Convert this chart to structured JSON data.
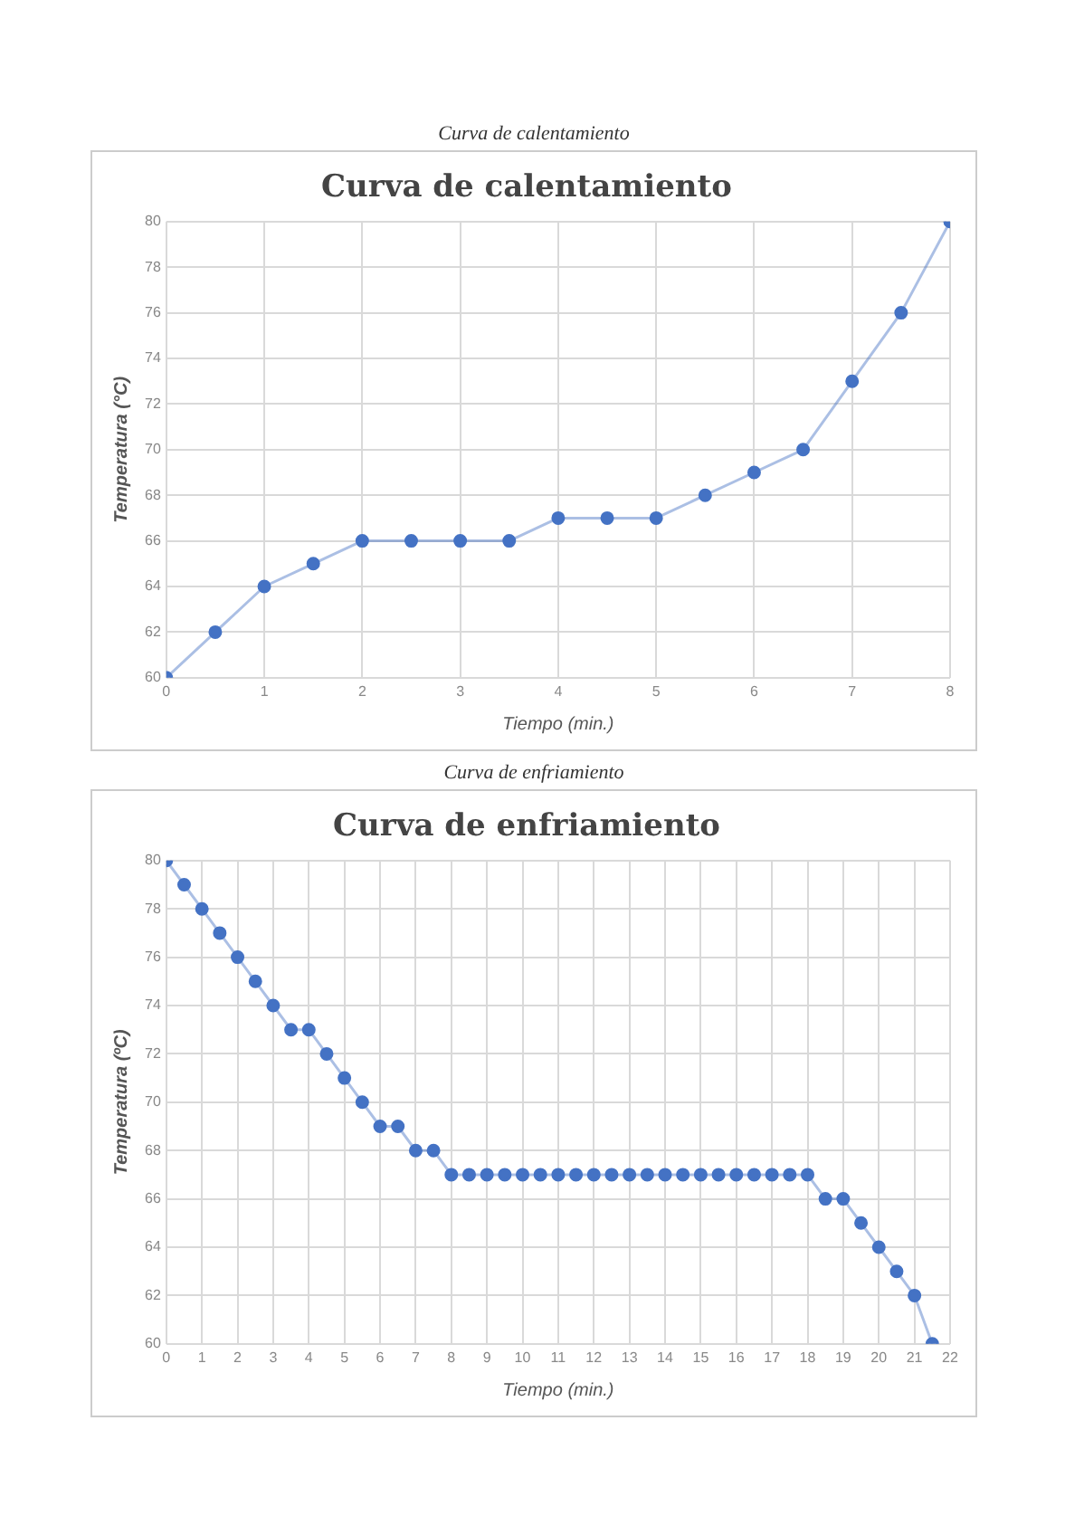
{
  "chart_data": [
    {
      "type": "line",
      "title": "Curva de calentamiento",
      "xlabel": "Tiempo (min.)",
      "ylabel": "Temperatura (°C)",
      "annotations": [
        "Curva de calentamiento"
      ],
      "x": [
        0,
        0.5,
        1,
        1.5,
        2,
        2.5,
        3,
        3.5,
        4,
        4.5,
        5,
        5.5,
        6,
        6.5,
        7,
        7.5,
        8
      ],
      "series": [
        {
          "color": "#4472c4",
          "values": [
            60,
            62,
            64,
            65,
            66,
            66,
            66,
            66,
            67,
            67,
            67,
            68,
            69,
            70,
            73,
            76,
            80
          ]
        }
      ],
      "xlim": [
        0,
        8
      ],
      "xticks": [
        0,
        1,
        2,
        3,
        4,
        5,
        6,
        7,
        8
      ],
      "ylim": [
        60,
        80
      ],
      "yticks": [
        60,
        62,
        64,
        66,
        68,
        70,
        72,
        74,
        76,
        78,
        80
      ],
      "grid": true,
      "legend": false,
      "marker": "circle",
      "line_style": "solid"
    },
    {
      "type": "line",
      "title": "Curva de enfriamiento",
      "xlabel": "Tiempo (min.)",
      "ylabel": "Temperatura (ºC)",
      "annotations": [
        "Curva de enfriamiento"
      ],
      "x": [
        0,
        0.5,
        1,
        1.5,
        2,
        2.5,
        3,
        3.5,
        4,
        4.5,
        5,
        5.5,
        6,
        6.5,
        7,
        7.5,
        8,
        8.5,
        9,
        9.5,
        10,
        10.5,
        11,
        11.5,
        12,
        12.5,
        13,
        13.5,
        14,
        14.5,
        15,
        15.5,
        16,
        16.5,
        17,
        17.5,
        18,
        18.5,
        19,
        19.5,
        20,
        20.5,
        21,
        21.5
      ],
      "series": [
        {
          "color": "#4472c4",
          "values": [
            80,
            79,
            78,
            77,
            76,
            75,
            74,
            73,
            73,
            72,
            71,
            70,
            69,
            69,
            68,
            68,
            67,
            67,
            67,
            67,
            67,
            67,
            67,
            67,
            67,
            67,
            67,
            67,
            67,
            67,
            67,
            67,
            67,
            67,
            67,
            67,
            67,
            66,
            66,
            65,
            64,
            63,
            62,
            60
          ]
        }
      ],
      "xlim": [
        0,
        22
      ],
      "xticks": [
        0,
        1,
        2,
        3,
        4,
        5,
        6,
        7,
        8,
        9,
        10,
        11,
        12,
        13,
        14,
        15,
        16,
        17,
        18,
        19,
        20,
        21,
        22
      ],
      "ylim": [
        60,
        80
      ],
      "yticks": [
        60,
        62,
        64,
        66,
        68,
        70,
        72,
        74,
        76,
        78,
        80
      ],
      "grid": true,
      "legend": false,
      "marker": "circle",
      "line_style": "solid"
    }
  ]
}
